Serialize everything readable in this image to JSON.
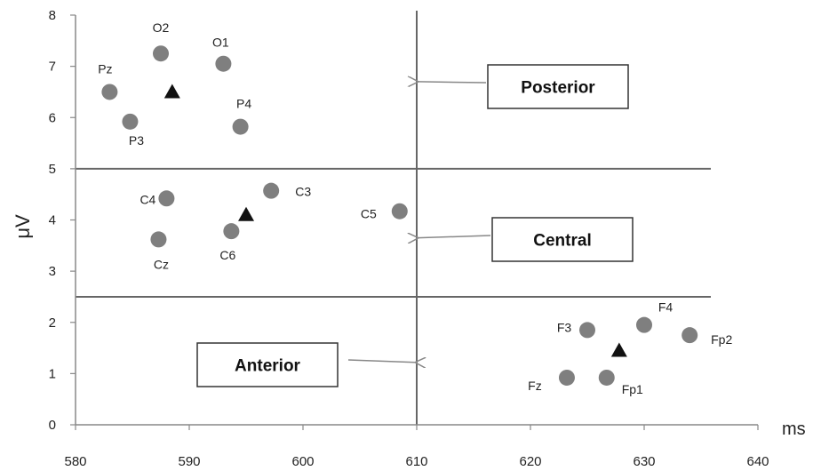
{
  "chart_data": {
    "type": "scatter",
    "xlabel": "ms",
    "ylabel": "μV",
    "xlim": [
      580,
      640
    ],
    "ylim": [
      0,
      8
    ],
    "x_ticks": [
      580,
      590,
      600,
      610,
      620,
      630,
      640
    ],
    "y_ticks": [
      0,
      1,
      2,
      3,
      4,
      5,
      6,
      7,
      8
    ],
    "colors": {
      "points": "#7f7f7f",
      "triangles": "#111111",
      "lines": "#666666",
      "arrows": "#888888"
    },
    "points": [
      {
        "label": "O2",
        "x": 587.5,
        "y": 7.25
      },
      {
        "label": "O1",
        "x": 593.0,
        "y": 7.05
      },
      {
        "label": "Pz",
        "x": 583.0,
        "y": 6.5
      },
      {
        "label": "P3",
        "x": 584.8,
        "y": 5.92
      },
      {
        "label": "P4",
        "x": 594.5,
        "y": 5.82
      },
      {
        "label": "C4",
        "x": 588.0,
        "y": 4.42
      },
      {
        "label": "C3",
        "x": 597.2,
        "y": 4.57
      },
      {
        "label": "C5",
        "x": 608.5,
        "y": 4.17
      },
      {
        "label": "Cz",
        "x": 587.3,
        "y": 3.62
      },
      {
        "label": "C6",
        "x": 593.7,
        "y": 3.78
      },
      {
        "label": "F3",
        "x": 625.0,
        "y": 1.85
      },
      {
        "label": "F4",
        "x": 630.0,
        "y": 1.95
      },
      {
        "label": "Fp2",
        "x": 634.0,
        "y": 1.75
      },
      {
        "label": "Fz",
        "x": 623.2,
        "y": 0.92
      },
      {
        "label": "Fp1",
        "x": 626.7,
        "y": 0.92
      }
    ],
    "centroids": [
      {
        "region": "posterior",
        "x": 588.5,
        "y": 6.5
      },
      {
        "region": "central",
        "x": 595.0,
        "y": 4.1
      },
      {
        "region": "anterior",
        "x": 627.8,
        "y": 1.45
      }
    ],
    "dividers": {
      "vertical_x": 610,
      "horizontal_y": [
        5.0,
        2.5
      ]
    },
    "annotations": [
      {
        "text": "Posterior",
        "arrow_to": [
          610,
          6.7
        ]
      },
      {
        "text": "Central",
        "arrow_to": [
          610,
          3.65
        ]
      },
      {
        "text": "Anterior",
        "arrow_to": [
          610,
          1.22
        ]
      }
    ]
  }
}
